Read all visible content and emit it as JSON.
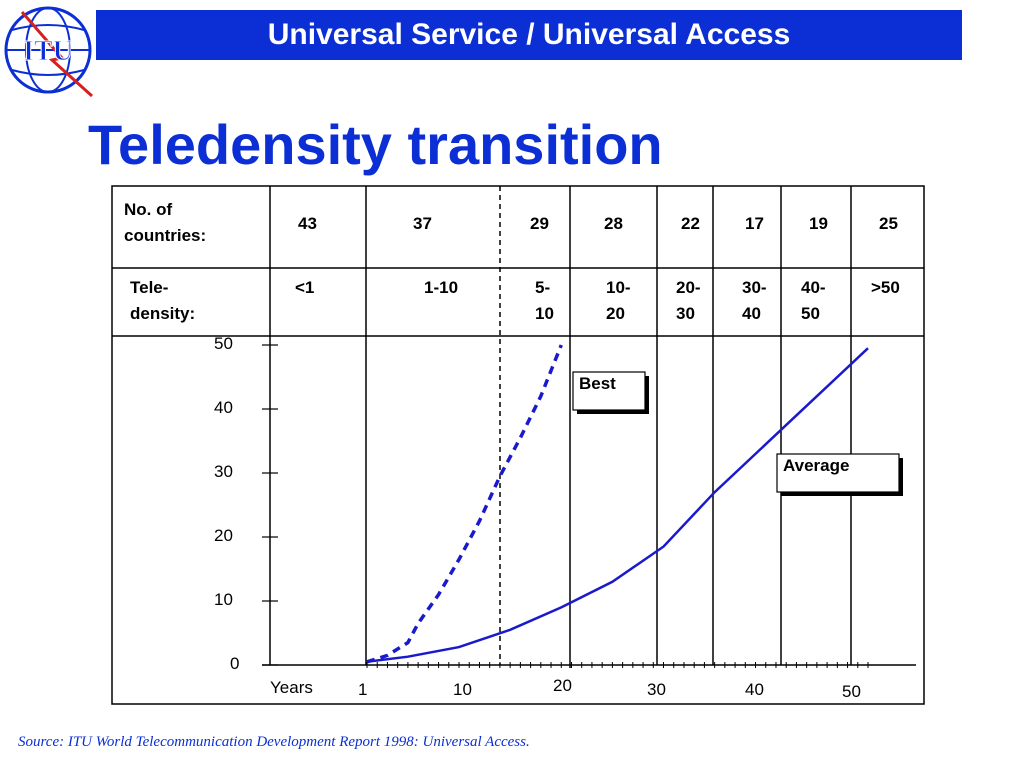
{
  "header": {
    "title": "Universal Service / Universal Access"
  },
  "logo": {
    "text": "ITU",
    "icon": "itu-globe-logo"
  },
  "page_title": "Teledensity transition",
  "source": "Source:  ITU World Telecommunication Development Report 1998: Universal Access.",
  "colors": {
    "brand_blue": "#0b2fd4",
    "line_blue": "#1a1acc"
  },
  "chart_data": {
    "type": "line",
    "title": "",
    "xlabel": "Years",
    "ylabel": "",
    "ylim": [
      0,
      50
    ],
    "y_ticks": [
      "0",
      "10",
      "20",
      "30",
      "40",
      "50"
    ],
    "x_ticks": [
      "1",
      "10",
      "20",
      "30",
      "40",
      "50"
    ],
    "table": {
      "row1_label": "No. of countries:",
      "row2_label": "Tele- density:",
      "columns": [
        {
          "countries": "43",
          "density": "<1"
        },
        {
          "countries": "37",
          "density": "1-10"
        },
        {
          "countries": "29",
          "density": "5- 10"
        },
        {
          "countries": "28",
          "density": "10- 20"
        },
        {
          "countries": "22",
          "density": "20- 30"
        },
        {
          "countries": "17",
          "density": "30- 40"
        },
        {
          "countries": "19",
          "density": "40- 50"
        },
        {
          "countries": "25",
          "density": ">50"
        }
      ]
    },
    "series": [
      {
        "name": "Best",
        "style": "dashed",
        "x": [
          1,
          3,
          5,
          6,
          8,
          10,
          12,
          14,
          16,
          18,
          20
        ],
        "y": [
          0.5,
          1.5,
          3.5,
          6.5,
          11,
          16.5,
          22.5,
          29.5,
          35.5,
          42,
          50
        ]
      },
      {
        "name": "Average",
        "style": "solid",
        "x": [
          1,
          5,
          10,
          15,
          20,
          25,
          30,
          35,
          40,
          45,
          50
        ],
        "y": [
          0.5,
          1.3,
          2.8,
          5.5,
          9,
          13,
          18.5,
          27,
          34.5,
          42,
          49.5
        ]
      }
    ]
  }
}
